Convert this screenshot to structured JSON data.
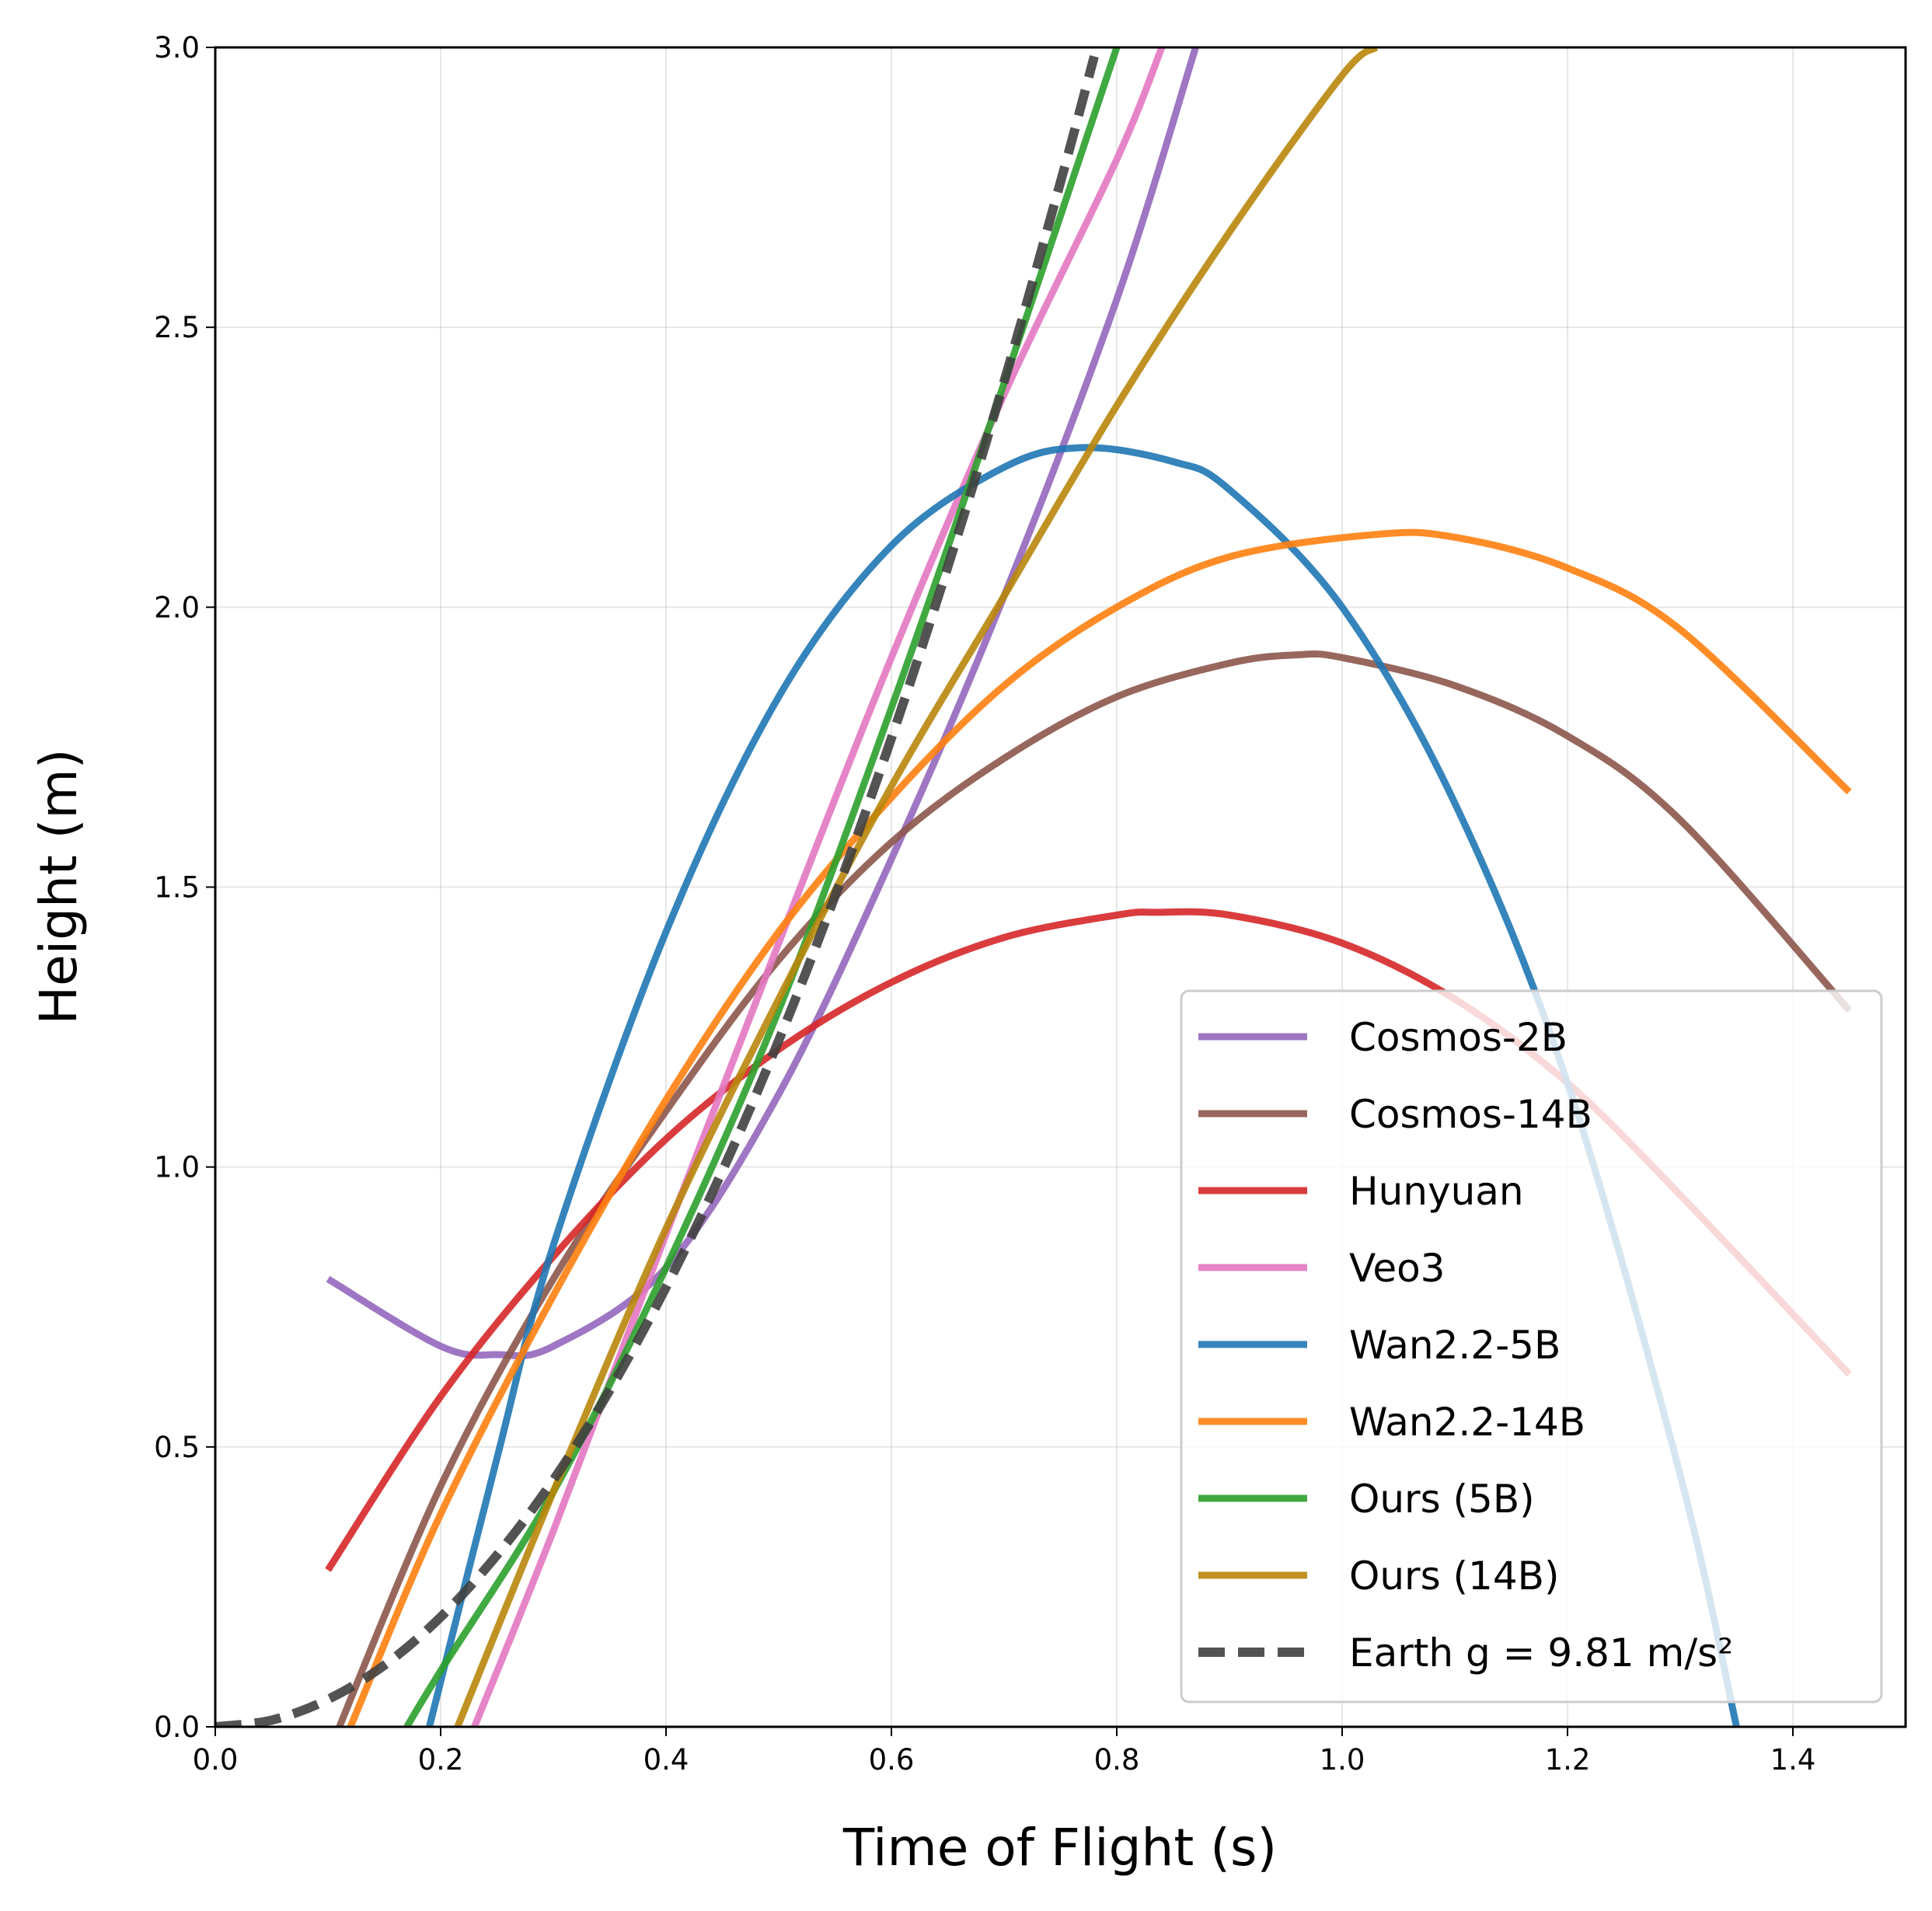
{
  "chart_data": {
    "type": "line",
    "title": "",
    "xlabel": "Time of Flight (s)",
    "ylabel": "Height (m)",
    "xlim": [
      0.0,
      1.5
    ],
    "ylim": [
      0.0,
      3.0
    ],
    "xticks": [
      0.0,
      0.2,
      0.4,
      0.6,
      0.8,
      1.0,
      1.2,
      1.4
    ],
    "yticks": [
      0.0,
      0.5,
      1.0,
      1.5,
      2.0,
      2.5,
      3.0
    ],
    "xtick_labels": [
      "0.0",
      "0.2",
      "0.4",
      "0.6",
      "0.8",
      "1.0",
      "1.2",
      "1.4"
    ],
    "ytick_labels": [
      "0.0",
      "0.5",
      "1.0",
      "1.5",
      "2.0",
      "2.5",
      "3.0"
    ],
    "grid": true,
    "legend_position": "lower-right",
    "series": [
      {
        "name": "Cosmos-2B",
        "color": "#9467bd",
        "x": [
          0.1,
          0.2,
          0.25,
          0.3,
          0.4,
          0.5,
          0.6,
          0.7,
          0.8,
          0.87
        ],
        "y": [
          0.8,
          0.68,
          0.665,
          0.68,
          0.82,
          1.13,
          1.55,
          2.02,
          2.55,
          3.0
        ]
      },
      {
        "name": "Cosmos-14B",
        "color": "#8c564b",
        "x": [
          0.1,
          0.2,
          0.3,
          0.4,
          0.5,
          0.6,
          0.7,
          0.8,
          0.9,
          0.96,
          1.0,
          1.1,
          1.2,
          1.3,
          1.45
        ],
        "y": [
          -0.05,
          0.43,
          0.8,
          1.1,
          1.37,
          1.58,
          1.73,
          1.84,
          1.9,
          1.915,
          1.91,
          1.86,
          1.77,
          1.62,
          1.28
        ]
      },
      {
        "name": "Hunyuan",
        "color": "#d62728",
        "x": [
          0.1,
          0.2,
          0.3,
          0.4,
          0.5,
          0.6,
          0.7,
          0.8,
          0.835,
          0.9,
          1.0,
          1.1,
          1.2,
          1.3,
          1.45
        ],
        "y": [
          0.28,
          0.59,
          0.84,
          1.05,
          1.21,
          1.33,
          1.41,
          1.45,
          1.455,
          1.45,
          1.4,
          1.3,
          1.15,
          0.95,
          0.63
        ]
      },
      {
        "name": "Veo3",
        "color": "#e377c2",
        "x": [
          0.23,
          0.3,
          0.4,
          0.5,
          0.6,
          0.7,
          0.8,
          0.84
        ],
        "y": [
          0.0,
          0.35,
          0.88,
          1.4,
          1.91,
          2.38,
          2.8,
          3.0
        ]
      },
      {
        "name": "Wan2.2-5B",
        "color": "#1f77b4",
        "x": [
          0.19,
          0.25,
          0.3,
          0.4,
          0.5,
          0.6,
          0.7,
          0.77,
          0.85,
          0.9,
          1.0,
          1.1,
          1.2,
          1.3,
          1.35
        ],
        "y": [
          0.0,
          0.48,
          0.86,
          1.42,
          1.84,
          2.11,
          2.25,
          2.285,
          2.26,
          2.21,
          2.0,
          1.65,
          1.15,
          0.45,
          0.0
        ]
      },
      {
        "name": "Wan2.2-14B",
        "color": "#ff7f0e",
        "x": [
          0.12,
          0.2,
          0.3,
          0.4,
          0.5,
          0.6,
          0.7,
          0.8,
          0.9,
          1.03,
          1.1,
          1.2,
          1.3,
          1.45
        ],
        "y": [
          0.0,
          0.38,
          0.77,
          1.12,
          1.42,
          1.66,
          1.86,
          2.0,
          2.09,
          2.13,
          2.125,
          2.07,
          1.96,
          1.67
        ]
      },
      {
        "name": "Ours (5B)",
        "color": "#2ca02c",
        "x": [
          0.17,
          0.2,
          0.3,
          0.4,
          0.5,
          0.6,
          0.7,
          0.8
        ],
        "y": [
          0.0,
          0.1,
          0.42,
          0.82,
          1.28,
          1.82,
          2.4,
          3.0
        ]
      },
      {
        "name": "Ours (14B)",
        "color": "#b8860b",
        "x": [
          0.215,
          0.3,
          0.4,
          0.5,
          0.6,
          0.7,
          0.8,
          0.9,
          1.0,
          1.03
        ],
        "y": [
          0.0,
          0.42,
          0.89,
          1.3,
          1.68,
          2.02,
          2.36,
          2.67,
          2.95,
          3.0
        ]
      },
      {
        "name": "Earth g = 9.81 m/s²",
        "color": "#404040",
        "dashed": true,
        "x": [
          0.0,
          0.05,
          0.1,
          0.15,
          0.2,
          0.25,
          0.3,
          0.35,
          0.4,
          0.45,
          0.5,
          0.55,
          0.6,
          0.65,
          0.7,
          0.75,
          0.78
        ],
        "y": [
          0.0,
          0.012,
          0.049,
          0.11,
          0.196,
          0.307,
          0.441,
          0.601,
          0.785,
          0.993,
          1.226,
          1.484,
          1.766,
          2.072,
          2.403,
          2.759,
          2.984
        ]
      }
    ]
  }
}
